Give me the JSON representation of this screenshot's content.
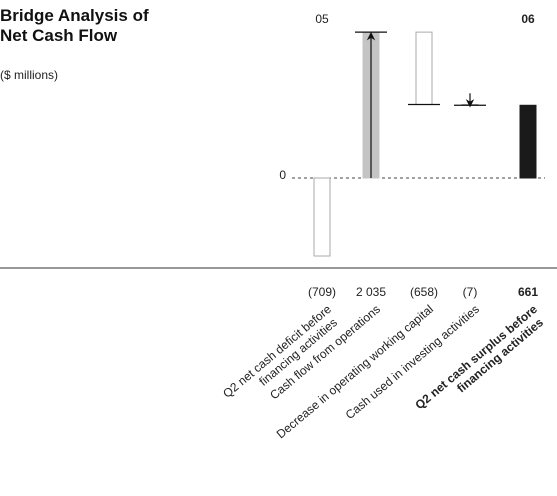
{
  "chart_data": {
    "type": "waterfall",
    "title": "Bridge Analysis of Net Cash Flow",
    "subtitle": "($ millions)",
    "annotations": [
      "05",
      "06"
    ],
    "categories": [
      [
        "Q2 net cash deficit before",
        "financing activities"
      ],
      [
        "Cash flow from operations"
      ],
      [
        "Decrease in operating working capital"
      ],
      [
        "Cash used in investing activities"
      ],
      [
        "Q2 net cash surplus before",
        "financing activities"
      ]
    ],
    "values": [
      -709,
      2035,
      -658,
      -7,
      661
    ],
    "value_labels": [
      "(709)",
      "2 035",
      "(658)",
      "(7)",
      "661"
    ],
    "totals": [
      4
    ],
    "highlight": 4,
    "colors": [
      "#ffffff",
      "#c4c4c4",
      "#ffffff",
      "#ffffff",
      "#1a1a1a"
    ],
    "arrows": [
      null,
      "up",
      null,
      "down",
      null
    ],
    "ylim": [
      -818,
      1527
    ],
    "yticks": [
      0
    ]
  }
}
